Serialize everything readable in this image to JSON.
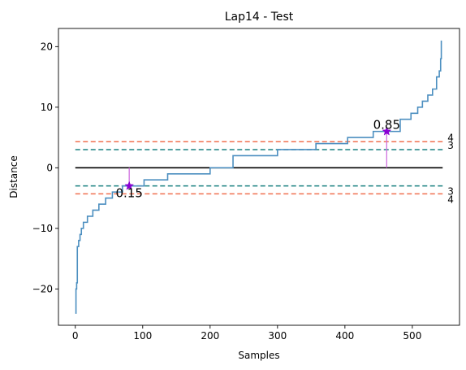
{
  "chart_data": {
    "type": "line",
    "title": "Lap14 - Test",
    "xlabel": "Samples",
    "ylabel": "Distance",
    "xlim": [
      -25,
      570
    ],
    "ylim": [
      -26,
      23
    ],
    "xticks": [
      0,
      100,
      200,
      300,
      400,
      500
    ],
    "yticks": [
      -20,
      -10,
      0,
      10,
      20
    ],
    "x_tick_labels": [
      "0",
      "100",
      "200",
      "300",
      "400",
      "500"
    ],
    "y_tick_labels": [
      "−20",
      "−10",
      "0",
      "10",
      "20"
    ],
    "grid": false,
    "legend": "none",
    "series": [
      {
        "color": "#4c8fc0",
        "x": [
          0,
          1,
          2,
          3,
          5,
          7,
          9,
          12,
          15,
          18,
          22,
          26,
          30,
          35,
          40,
          45,
          50,
          55,
          60,
          65,
          70,
          75,
          80,
          82,
          100,
          102,
          135,
          137,
          198,
          200,
          232,
          234,
          298,
          300,
          355,
          357,
          402,
          404,
          440,
          442,
          480,
          482,
          496,
          498,
          505,
          508,
          512,
          515,
          520,
          523,
          527,
          530,
          533,
          536,
          538,
          540,
          542,
          543
        ],
        "y": [
          -24,
          -20,
          -19,
          -13,
          -12,
          -11,
          -10,
          -9,
          -9,
          -8,
          -8,
          -7,
          -7,
          -6,
          -6,
          -5,
          -5,
          -4,
          -4,
          -4,
          -3,
          -3,
          -3,
          -3,
          -3,
          -2,
          -2,
          -1,
          -1,
          0,
          0,
          2,
          2,
          3,
          3,
          4,
          4,
          5,
          5,
          6,
          6,
          8,
          8,
          9,
          9,
          10,
          10,
          11,
          11,
          12,
          12,
          13,
          13,
          15,
          15,
          16,
          18,
          21
        ]
      }
    ],
    "reference_lines": [
      {
        "y": 0,
        "color": "#000000",
        "style": "solid",
        "x_from": 0,
        "x_to": 545
      },
      {
        "y": 4.3,
        "color": "#f07050",
        "style": "dashed",
        "x_from": 0,
        "x_to": 545,
        "label": "4"
      },
      {
        "y": 3.0,
        "color": "#1a8080",
        "style": "dashed",
        "x_from": 0,
        "x_to": 545,
        "label": "3"
      },
      {
        "y": -3.0,
        "color": "#1a8080",
        "style": "dashed",
        "x_from": 0,
        "x_to": 545,
        "label": "3"
      },
      {
        "y": -4.3,
        "color": "#f07050",
        "style": "dashed",
        "x_from": 0,
        "x_to": 545,
        "label": "4"
      }
    ],
    "annotations": [
      {
        "x": 80,
        "y": -3,
        "label": "0.15",
        "color": "#8a00d4",
        "stem_color": "#d070e0",
        "marker": "star"
      },
      {
        "x": 462,
        "y": 6,
        "label": "0.85",
        "color": "#8a00d4",
        "stem_color": "#d070e0",
        "marker": "star"
      }
    ]
  }
}
